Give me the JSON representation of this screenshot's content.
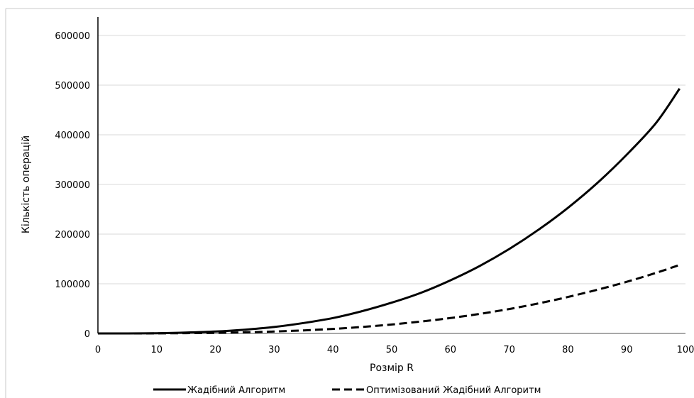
{
  "chart_data": {
    "type": "line",
    "title": "",
    "xlabel": "Розмір R",
    "ylabel": "Кількість операцій",
    "xlim": [
      0,
      100
    ],
    "ylim": [
      0,
      600000
    ],
    "x_ticks": [
      "0",
      "10",
      "20",
      "30",
      "40",
      "50",
      "60",
      "70",
      "80",
      "90",
      "100"
    ],
    "y_ticks": [
      "0",
      "100000",
      "200000",
      "300000",
      "400000",
      "500000",
      "600000"
    ],
    "grid": "horizontal",
    "legend_position": "bottom",
    "series": [
      {
        "name": "Жадібний Алгоритм",
        "style": "solid",
        "color": "#000000",
        "x": [
          0,
          5,
          10,
          15,
          20,
          25,
          30,
          35,
          40,
          45,
          50,
          55,
          60,
          65,
          70,
          75,
          80,
          85,
          90,
          95,
          99
        ],
        "y": [
          0,
          60,
          490,
          1650,
          3900,
          7600,
          13000,
          21000,
          31000,
          45000,
          62000,
          82000,
          107000,
          136000,
          170000,
          209000,
          253000,
          303000,
          360000,
          424000,
          493000
        ]
      },
      {
        "name": "Оптимізований Жадібний Алгоритм",
        "style": "dashed",
        "color": "#000000",
        "x": [
          0,
          5,
          10,
          15,
          20,
          25,
          30,
          35,
          40,
          45,
          50,
          55,
          60,
          65,
          70,
          75,
          80,
          85,
          90,
          95,
          99
        ],
        "y": [
          0,
          20,
          150,
          500,
          1150,
          2250,
          3900,
          6200,
          9200,
          13100,
          18000,
          24000,
          31000,
          39400,
          49200,
          60500,
          73500,
          88000,
          104000,
          122000,
          138000
        ]
      }
    ]
  }
}
